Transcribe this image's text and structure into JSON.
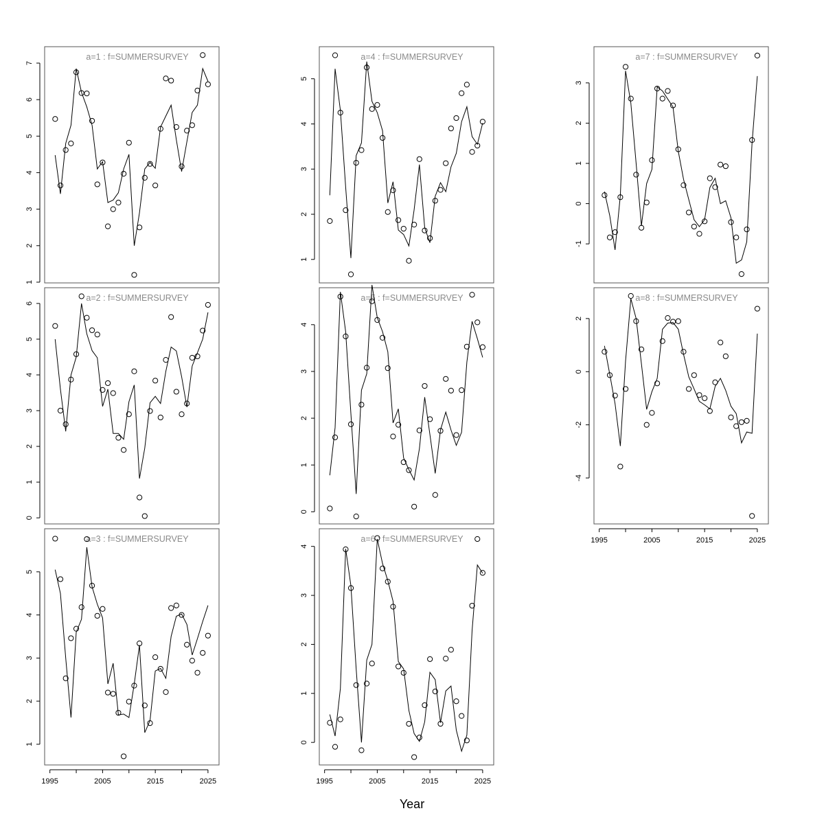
{
  "xlabel": "Year",
  "colors": {
    "line": "#000000",
    "points": "#000000",
    "title": "#8a8a8a",
    "frame": "#555555"
  },
  "chart_data": [
    {
      "type": "line",
      "title": "a=1  :  f=SUMMERSURVEY",
      "xlim": [
        1994,
        2027.1
      ],
      "ylim": [
        0.98,
        7.45
      ],
      "yticks": [
        1,
        2,
        3,
        4,
        5,
        6,
        7
      ],
      "xticks": [],
      "xtick_labels": [],
      "x": [
        1996,
        1997,
        1998,
        1999,
        2000,
        2001,
        2002,
        2003,
        2004,
        2005,
        2006,
        2007,
        2008,
        2009,
        2010,
        2011,
        2012,
        2013,
        2014,
        2015,
        2016,
        2017,
        2018,
        2019,
        2020,
        2021,
        2022,
        2023,
        2024,
        2025
      ],
      "observed": [
        5.47,
        3.65,
        4.62,
        4.8,
        6.75,
        6.18,
        6.17,
        5.42,
        3.68,
        4.28,
        2.53,
        3.0,
        3.18,
        3.97,
        4.82,
        1.2,
        2.5,
        3.86,
        4.24,
        3.65,
        5.2,
        6.58,
        6.52,
        5.25,
        4.17,
        5.15,
        5.3,
        6.25,
        7.22,
        6.42
      ],
      "fitted": [
        4.48,
        3.42,
        4.8,
        5.3,
        6.85,
        6.2,
        5.8,
        5.3,
        4.1,
        4.3,
        3.18,
        3.25,
        3.45,
        4.1,
        4.5,
        2.0,
        2.9,
        4.1,
        4.28,
        4.12,
        5.25,
        5.55,
        5.85,
        4.9,
        4.03,
        4.85,
        5.65,
        5.85,
        6.85,
        6.5
      ]
    },
    {
      "type": "line",
      "title": "a=2  :  f=SUMMERSURVEY",
      "xlim": [
        1994,
        2027.1
      ],
      "ylim": [
        -0.17,
        6.44
      ],
      "yticks": [
        0,
        1,
        2,
        3,
        4,
        5,
        6
      ],
      "xticks": [],
      "xtick_labels": [],
      "x": [
        1996,
        1997,
        1998,
        1999,
        2000,
        2001,
        2002,
        2003,
        2004,
        2005,
        2006,
        2007,
        2008,
        2009,
        2010,
        2011,
        2012,
        2013,
        2014,
        2015,
        2016,
        2017,
        2018,
        2019,
        2020,
        2021,
        2022,
        2023,
        2024,
        2025
      ],
      "observed": [
        5.37,
        3.0,
        2.62,
        3.87,
        4.58,
        6.2,
        5.6,
        5.25,
        5.13,
        3.58,
        3.77,
        3.49,
        2.24,
        1.9,
        2.9,
        4.1,
        0.57,
        0.05,
        2.99,
        3.84,
        2.81,
        4.42,
        5.62,
        3.53,
        2.9,
        3.2,
        4.48,
        4.52,
        5.24,
        5.96
      ],
      "fitted": [
        5.0,
        3.6,
        2.42,
        4.0,
        4.5,
        6.0,
        5.15,
        4.68,
        4.48,
        3.12,
        3.6,
        2.36,
        2.36,
        2.2,
        3.25,
        3.72,
        1.1,
        1.95,
        3.22,
        3.4,
        3.2,
        4.1,
        4.78,
        4.67,
        3.95,
        3.1,
        4.25,
        4.62,
        5.0,
        5.75
      ]
    },
    {
      "type": "line",
      "title": "a=3  :  f=SUMMERSURVEY",
      "xlim": [
        1994,
        2027.1
      ],
      "ylim": [
        0.52,
        6.0
      ],
      "yticks": [
        1,
        2,
        3,
        4,
        5
      ],
      "xticks": [
        1995,
        2000,
        2005,
        2010,
        2015,
        2020,
        2025
      ],
      "xtick_labels": [
        "1995",
        "2005",
        "2015",
        "2025"
      ],
      "x": [
        1996,
        1997,
        1998,
        1999,
        2000,
        2001,
        2002,
        2003,
        2004,
        2005,
        2006,
        2007,
        2008,
        2009,
        2010,
        2011,
        2012,
        2013,
        2014,
        2015,
        2016,
        2017,
        2018,
        2019,
        2020,
        2021,
        2022,
        2023,
        2024,
        2025
      ],
      "observed": [
        5.77,
        4.83,
        2.53,
        3.46,
        3.68,
        4.18,
        5.76,
        4.68,
        3.98,
        4.14,
        2.2,
        2.17,
        1.73,
        0.72,
        1.99,
        2.36,
        3.34,
        1.9,
        1.49,
        3.02,
        2.75,
        2.21,
        4.16,
        4.22,
        4.0,
        3.31,
        2.94,
        2.66,
        3.12,
        3.52
      ],
      "fitted": [
        5.05,
        4.5,
        3.0,
        1.62,
        3.6,
        3.9,
        5.57,
        4.65,
        4.25,
        3.93,
        2.4,
        2.88,
        1.68,
        1.7,
        1.62,
        2.4,
        3.3,
        1.27,
        1.55,
        2.7,
        2.76,
        2.53,
        3.5,
        3.97,
        4.02,
        3.78,
        3.07,
        3.45,
        3.85,
        4.22
      ]
    },
    {
      "type": "line",
      "title": "a=4  :  f=SUMMERSURVEY",
      "xlim": [
        1994,
        2027.1
      ],
      "ylim": [
        0.48,
        5.71
      ],
      "yticks": [
        1,
        2,
        3,
        4,
        5
      ],
      "xticks": [],
      "xtick_labels": [],
      "x": [
        1996,
        1997,
        1998,
        1999,
        2000,
        2001,
        2002,
        2003,
        2004,
        2005,
        2006,
        2007,
        2008,
        2009,
        2010,
        2011,
        2012,
        2013,
        2014,
        2015,
        2016,
        2017,
        2018,
        2019,
        2020,
        2021,
        2022,
        2023,
        2024,
        2025
      ],
      "observed": [
        1.85,
        5.52,
        4.25,
        2.09,
        0.67,
        3.14,
        3.42,
        5.25,
        4.33,
        4.42,
        3.69,
        2.05,
        2.53,
        1.87,
        1.68,
        0.97,
        1.77,
        3.22,
        1.64,
        1.47,
        2.3,
        2.54,
        3.13,
        3.9,
        4.13,
        4.68,
        4.87,
        3.38,
        3.52,
        4.05
      ],
      "fitted": [
        2.42,
        5.22,
        4.3,
        2.6,
        1.03,
        3.3,
        3.58,
        5.38,
        4.5,
        4.25,
        3.85,
        2.25,
        2.72,
        1.65,
        1.55,
        1.3,
        2.1,
        3.1,
        1.7,
        1.37,
        2.4,
        2.7,
        2.5,
        3.05,
        3.35,
        4.05,
        4.38,
        3.72,
        3.55,
        4.02
      ]
    },
    {
      "type": "line",
      "title": "a=5  :  f=SUMMERSURVEY",
      "xlim": [
        1994,
        2027.1
      ],
      "ylim": [
        -0.26,
        4.79
      ],
      "yticks": [
        0,
        1,
        2,
        3,
        4
      ],
      "xticks": [],
      "xtick_labels": [],
      "x": [
        1996,
        1997,
        1998,
        1999,
        2000,
        2001,
        2002,
        2003,
        2004,
        2005,
        2006,
        2007,
        2008,
        2009,
        2010,
        2011,
        2012,
        2013,
        2014,
        2015,
        2016,
        2017,
        2018,
        2019,
        2020,
        2021,
        2022,
        2023,
        2024,
        2025
      ],
      "observed": [
        0.07,
        1.59,
        4.6,
        3.75,
        1.87,
        -0.1,
        2.29,
        3.08,
        4.5,
        4.1,
        3.72,
        3.07,
        1.61,
        1.86,
        1.06,
        0.89,
        0.11,
        1.74,
        2.69,
        1.98,
        0.36,
        1.73,
        2.84,
        2.59,
        1.64,
        2.6,
        3.53,
        4.64,
        4.05,
        3.52
      ],
      "fitted": [
        0.78,
        1.8,
        4.7,
        3.85,
        2.1,
        0.38,
        2.6,
        2.95,
        4.85,
        4.15,
        3.85,
        3.42,
        1.9,
        2.2,
        1.15,
        0.9,
        0.68,
        1.35,
        2.45,
        1.65,
        0.82,
        1.75,
        2.13,
        1.75,
        1.42,
        1.7,
        3.2,
        4.07,
        3.7,
        3.3
      ]
    },
    {
      "type": "line",
      "title": "a=6  :  f=SUMMERSURVEY",
      "xlim": [
        1994,
        2027.1
      ],
      "ylim": [
        -0.46,
        4.36
      ],
      "yticks": [
        0,
        1,
        2,
        3,
        4
      ],
      "xticks": [
        1995,
        2000,
        2005,
        2010,
        2015,
        2020,
        2025
      ],
      "xtick_labels": [
        "1995",
        "2005",
        "2015",
        "2025"
      ],
      "x": [
        1996,
        1997,
        1998,
        1999,
        2000,
        2001,
        2002,
        2003,
        2004,
        2005,
        2006,
        2007,
        2008,
        2009,
        2010,
        2011,
        2012,
        2013,
        2014,
        2015,
        2016,
        2017,
        2018,
        2019,
        2020,
        2021,
        2022,
        2023,
        2024,
        2025
      ],
      "observed": [
        0.4,
        -0.09,
        0.47,
        3.94,
        3.15,
        1.17,
        -0.16,
        1.2,
        1.61,
        4.17,
        3.55,
        3.28,
        2.77,
        1.55,
        1.42,
        0.38,
        -0.3,
        0.1,
        0.76,
        1.7,
        1.04,
        0.38,
        1.71,
        1.89,
        0.84,
        0.54,
        0.04,
        2.79,
        4.15,
        3.46
      ],
      "fitted": [
        0.57,
        0.13,
        1.1,
        3.95,
        3.2,
        1.5,
        0.0,
        1.68,
        2.0,
        4.15,
        3.65,
        3.3,
        2.88,
        1.65,
        1.5,
        0.65,
        0.18,
        0.02,
        0.42,
        1.43,
        1.28,
        0.4,
        1.05,
        1.15,
        0.25,
        -0.18,
        0.15,
        2.28,
        3.62,
        3.45
      ]
    },
    {
      "type": "line",
      "title": "a=7  :  f=SUMMERSURVEY",
      "xlim": [
        1994,
        2027.1
      ],
      "ylim": [
        -1.97,
        3.9
      ],
      "yticks": [
        -1,
        0,
        1,
        2,
        3
      ],
      "xticks": [],
      "xtick_labels": [],
      "x": [
        1996,
        1997,
        1998,
        1999,
        2000,
        2001,
        2002,
        2003,
        2004,
        2005,
        2006,
        2007,
        2008,
        2009,
        2010,
        2011,
        2012,
        2013,
        2014,
        2015,
        2016,
        2017,
        2018,
        2019,
        2020,
        2021,
        2022,
        2023,
        2024,
        2025
      ],
      "observed": [
        0.21,
        -0.84,
        -0.71,
        0.16,
        3.4,
        2.61,
        0.72,
        -0.6,
        0.03,
        1.08,
        2.86,
        2.61,
        2.8,
        2.44,
        1.35,
        0.46,
        -0.22,
        -0.57,
        -0.75,
        -0.44,
        0.63,
        0.41,
        0.97,
        0.93,
        -0.46,
        -0.84,
        -1.75,
        -0.64,
        1.58,
        3.68
      ],
      "fitted": [
        0.3,
        -0.3,
        -1.15,
        0.2,
        3.3,
        2.5,
        1.0,
        -0.55,
        0.5,
        0.85,
        2.9,
        2.8,
        2.6,
        2.4,
        1.3,
        0.6,
        0.1,
        -0.4,
        -0.57,
        -0.4,
        0.4,
        0.63,
        0.0,
        0.07,
        -0.35,
        -1.48,
        -1.4,
        -0.95,
        1.5,
        3.17
      ]
    },
    {
      "type": "line",
      "title": "a=8  :  f=SUMMERSURVEY",
      "xlim": [
        1994,
        2027.1
      ],
      "ylim": [
        -5.73,
        3.16
      ],
      "yticks": [
        -4,
        -2,
        0,
        2
      ],
      "xticks": [
        1995,
        2000,
        2005,
        2010,
        2015,
        2020,
        2025
      ],
      "xtick_labels": [
        "1995",
        "2005",
        "2015",
        "2025"
      ],
      "x": [
        1996,
        1997,
        1998,
        1999,
        2000,
        2001,
        2002,
        2003,
        2004,
        2005,
        2006,
        2007,
        2008,
        2009,
        2010,
        2011,
        2012,
        2013,
        2014,
        2015,
        2016,
        2017,
        2018,
        2019,
        2020,
        2021,
        2022,
        2023,
        2024,
        2025
      ],
      "observed": [
        0.75,
        -0.13,
        -0.9,
        -3.57,
        -0.65,
        2.85,
        1.9,
        0.84,
        -2.0,
        -1.55,
        -0.44,
        1.15,
        2.02,
        1.88,
        1.9,
        0.75,
        -0.65,
        -0.13,
        -0.88,
        -1.0,
        -1.48,
        -0.4,
        1.1,
        0.58,
        -1.72,
        -2.05,
        -1.9,
        -1.85,
        -5.43,
        2.37
      ],
      "fitted": [
        0.97,
        -0.1,
        -1.2,
        -2.8,
        0.4,
        2.75,
        2.0,
        0.3,
        -1.42,
        -0.75,
        -0.25,
        1.6,
        1.83,
        1.85,
        1.6,
        0.65,
        -0.2,
        -0.65,
        -1.12,
        -1.25,
        -1.4,
        -0.55,
        -0.25,
        -0.7,
        -1.3,
        -1.58,
        -2.68,
        -2.27,
        -2.32,
        1.43
      ]
    }
  ]
}
